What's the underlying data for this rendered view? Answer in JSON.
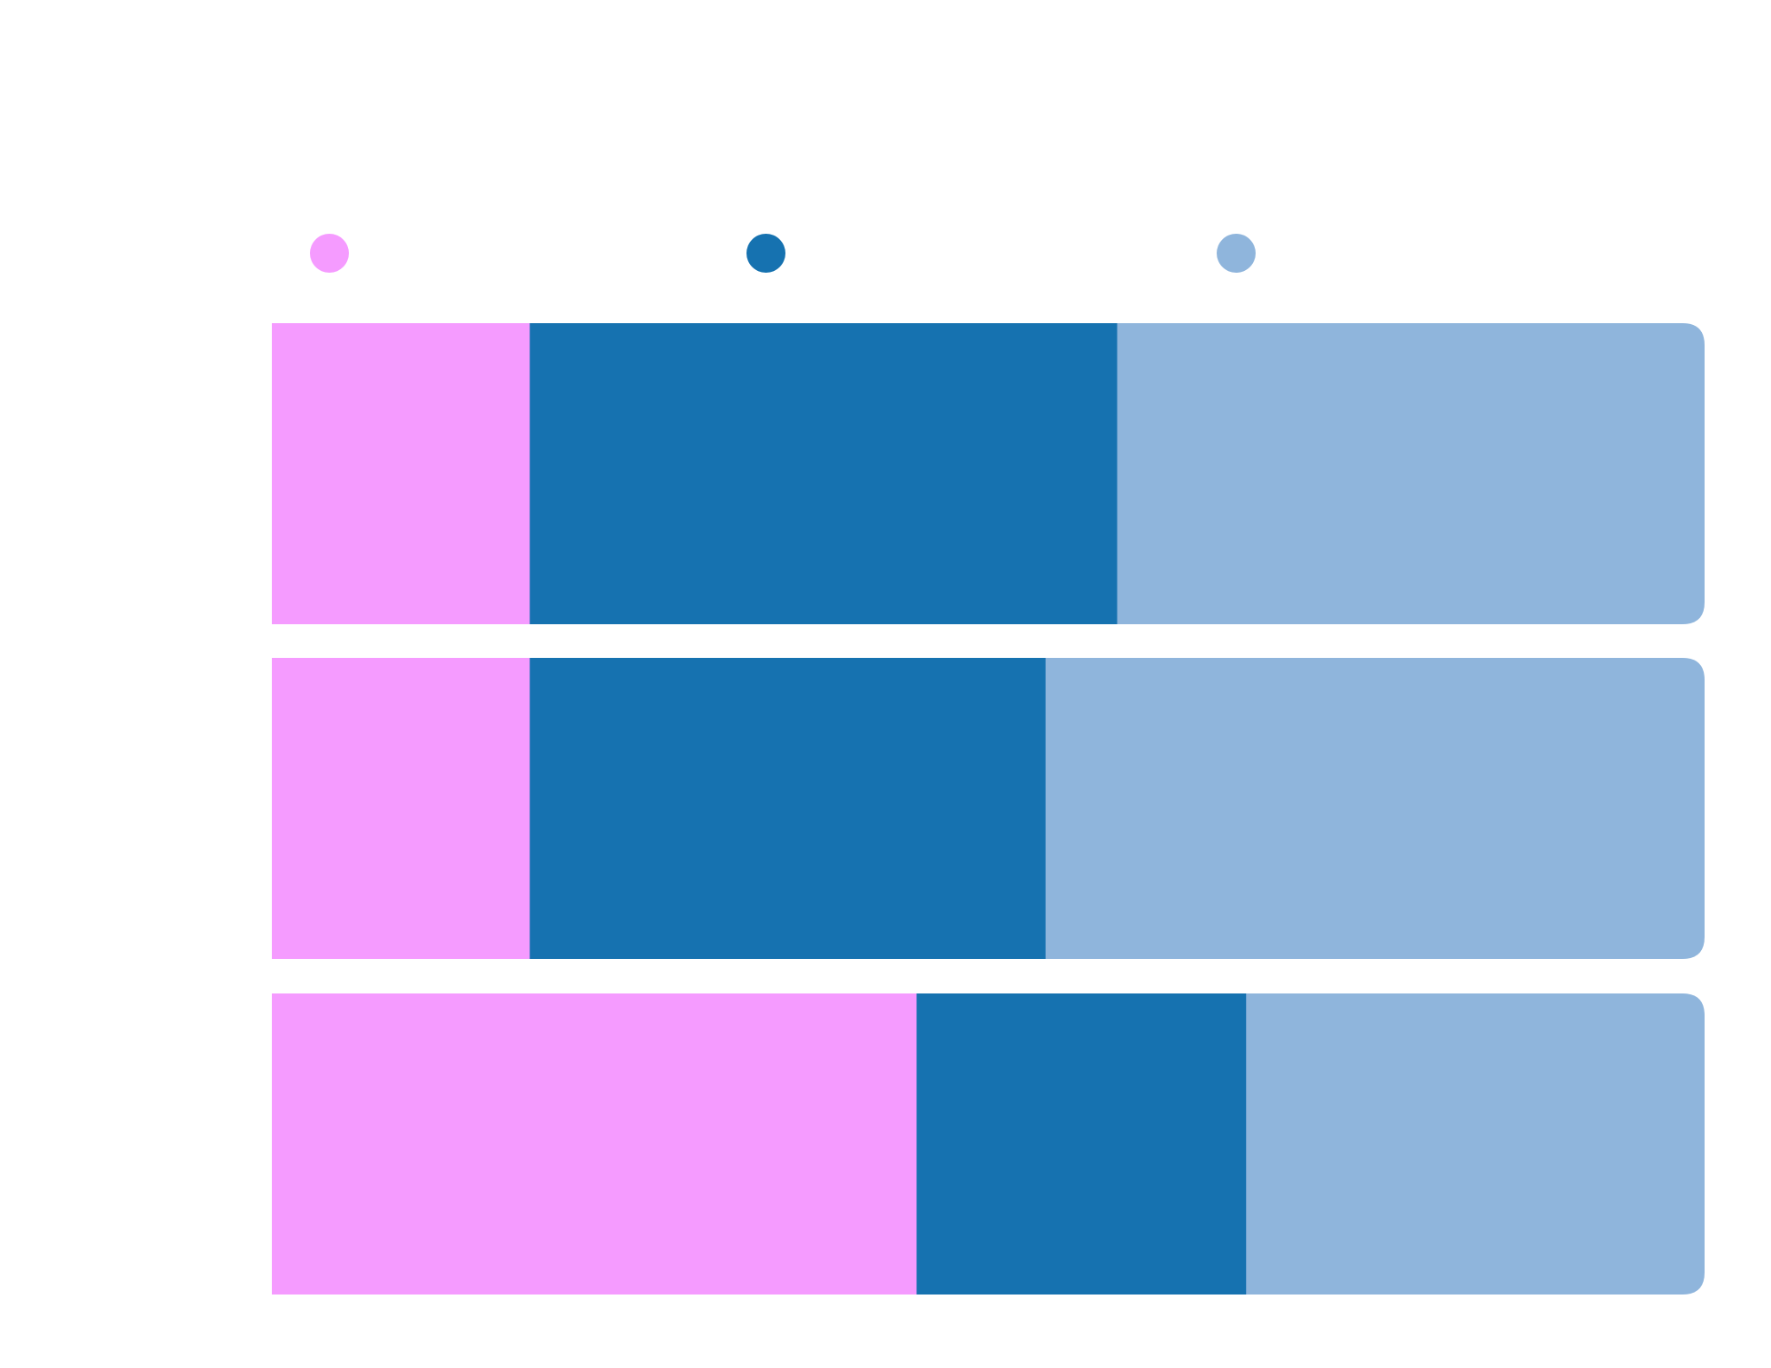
{
  "chart_data": {
    "type": "bar",
    "orientation": "horizontal",
    "stacking": "percent",
    "title": "",
    "xlabel": "",
    "ylabel": "",
    "xlim": [
      0,
      100
    ],
    "grid": false,
    "legend_position": "top",
    "categories": [
      "",
      "",
      ""
    ],
    "series": [
      {
        "color": "#F59BFF",
        "values": [
          18.0,
          18.0,
          45.0
        ]
      },
      {
        "color": "#1672B0",
        "values": [
          41.0,
          36.0,
          23.0
        ]
      },
      {
        "color": "#8FB5DC",
        "values": [
          41.0,
          46.0,
          32.0
        ]
      }
    ]
  }
}
